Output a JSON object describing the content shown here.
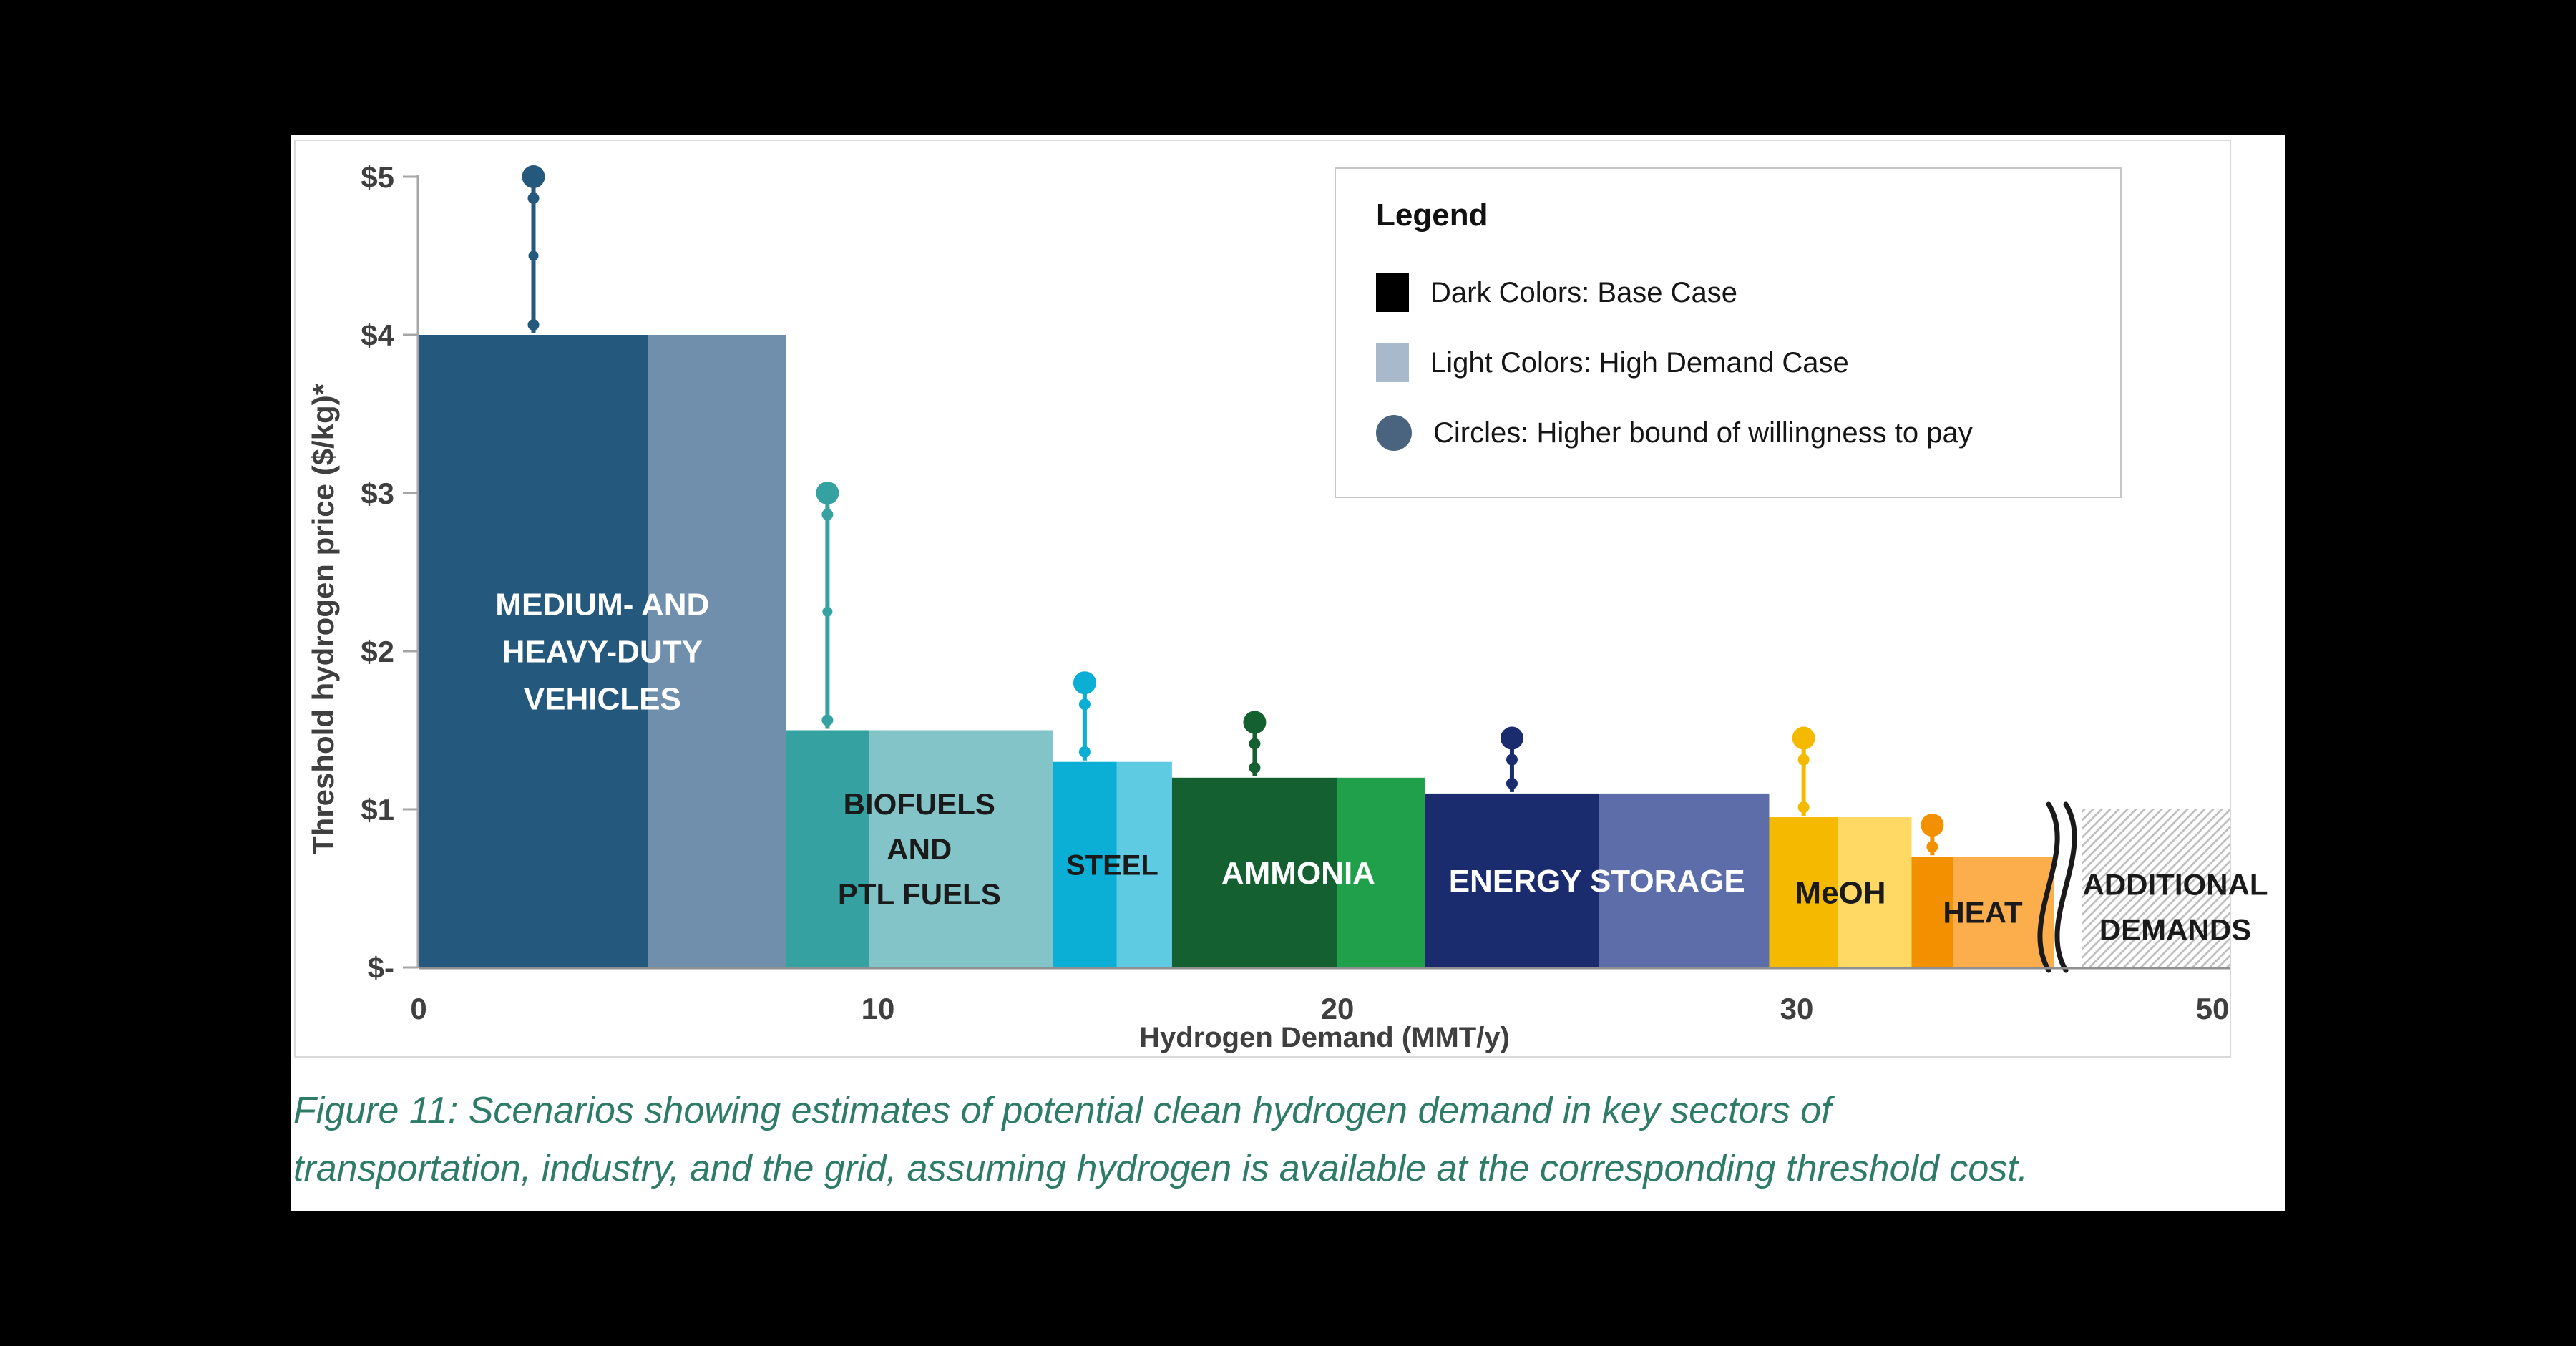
{
  "window": {
    "background": "#000000",
    "panel_background": "#FFFFFF"
  },
  "figure": {
    "caption_line1": "Figure 11: Scenarios showing estimates of potential clean hydrogen demand in key sectors of",
    "caption_line2": "transportation, industry, and the grid, assuming hydrogen is available at the corresponding threshold cost.",
    "caption_color": "#2E7C68"
  },
  "legend": {
    "title": "Legend",
    "items": [
      {
        "swatch": "square",
        "color": "#000000",
        "label": "Dark Colors: Base Case"
      },
      {
        "swatch": "square",
        "color": "#A7B9CB",
        "label": "Light Colors: High Demand Case"
      },
      {
        "swatch": "circle",
        "color": "#4A637F",
        "label": "Circles: Higher bound of willingness to pay"
      }
    ]
  },
  "axes_style": {
    "tick_color": "#3F3F3F",
    "axis_line_color": "#A6A6A6",
    "baseline_color": "#8F8F8F",
    "frame_color": "#D9D9D9"
  },
  "chart_data": {
    "type": "bar",
    "title": "",
    "xlabel": "Hydrogen Demand (MMT/y)",
    "ylabel": "Threshold hydrogen price ($/kg)*",
    "ylim": [
      0,
      5
    ],
    "xlim": [
      0,
      50
    ],
    "grid": false,
    "x_axis_break": {
      "after_value": 36.2,
      "display_end": 50
    },
    "y_ticks": [
      {
        "value": 5,
        "label": "$5"
      },
      {
        "value": 4,
        "label": "$4"
      },
      {
        "value": 3,
        "label": "$3"
      },
      {
        "value": 2,
        "label": "$2"
      },
      {
        "value": 1,
        "label": "$1"
      },
      {
        "value": 0,
        "label": "$-"
      }
    ],
    "x_ticks": [
      {
        "value": 0,
        "label": "0"
      },
      {
        "value": 10,
        "label": "10"
      },
      {
        "value": 20,
        "label": "20"
      },
      {
        "value": 30,
        "label": "30"
      },
      {
        "value": 50,
        "label": "50"
      }
    ],
    "bars": [
      {
        "sector": "Medium- and heavy-duty vehicles",
        "label_lines": [
          "MEDIUM- AND",
          "HEAVY-DUTY",
          "VEHICLES"
        ],
        "label_color": "#FFFFFF",
        "font_size": 44,
        "demand_start_mmt": 0,
        "demand_base_mmt": 5,
        "demand_high_mmt": 8,
        "threshold_price_usd_per_kg": 4.0,
        "willingness_to_pay_upper_usd_per_kg": 5.0,
        "dark_color": "#24587C",
        "light_color": "#6F8FAD"
      },
      {
        "sector": "Biofuels and PtL fuels",
        "label_lines": [
          "BIOFUELS",
          "AND",
          "PTL FUELS"
        ],
        "label_color": "#1A1A1A",
        "font_size": 42,
        "demand_start_mmt": 8,
        "demand_base_mmt": 9.8,
        "demand_high_mmt": 13.8,
        "threshold_price_usd_per_kg": 1.5,
        "willingness_to_pay_upper_usd_per_kg": 3.0,
        "dark_color": "#35A1A1",
        "light_color": "#82C4C7"
      },
      {
        "sector": "Steel",
        "label_lines": [
          "STEEL"
        ],
        "label_color": "#1A1A1A",
        "font_size": 40,
        "demand_start_mmt": 13.8,
        "demand_base_mmt": 15.2,
        "demand_high_mmt": 16.4,
        "threshold_price_usd_per_kg": 1.3,
        "willingness_to_pay_upper_usd_per_kg": 1.8,
        "dark_color": "#0BAED5",
        "light_color": "#5FCBE3"
      },
      {
        "sector": "Ammonia",
        "label_lines": [
          "AMMONIA"
        ],
        "label_color": "#FFFFFF",
        "font_size": 44,
        "demand_start_mmt": 16.4,
        "demand_base_mmt": 20,
        "demand_high_mmt": 21.9,
        "threshold_price_usd_per_kg": 1.2,
        "willingness_to_pay_upper_usd_per_kg": 1.55,
        "dark_color": "#156030",
        "light_color": "#21A04C"
      },
      {
        "sector": "Energy storage",
        "label_lines": [
          "ENERGY STORAGE"
        ],
        "label_color": "#FFFFFF",
        "font_size": 44,
        "demand_start_mmt": 21.9,
        "demand_base_mmt": 25.7,
        "demand_high_mmt": 29.4,
        "threshold_price_usd_per_kg": 1.1,
        "willingness_to_pay_upper_usd_per_kg": 1.45,
        "dark_color": "#1B2C6E",
        "light_color": "#5C6DA9"
      },
      {
        "sector": "MeOH",
        "label_lines": [
          "MeOH"
        ],
        "label_color": "#1A1A1A",
        "font_size": 44,
        "demand_start_mmt": 29.4,
        "demand_base_mmt": 30.9,
        "demand_high_mmt": 32.5,
        "threshold_price_usd_per_kg": 0.95,
        "willingness_to_pay_upper_usd_per_kg": 1.45,
        "dark_color": "#F5BA00",
        "light_color": "#FFD964"
      },
      {
        "sector": "Heat",
        "label_lines": [
          "HEAT"
        ],
        "label_color": "#1A1A1A",
        "font_size": 42,
        "demand_start_mmt": 32.5,
        "demand_base_mmt": 33.4,
        "demand_high_mmt": 35.6,
        "threshold_price_usd_per_kg": 0.7,
        "willingness_to_pay_upper_usd_per_kg": 0.9,
        "dark_color": "#F39000",
        "light_color": "#FBAE4B"
      }
    ],
    "additional_demands": {
      "label_lines": [
        "ADDITIONAL",
        "DEMANDS"
      ],
      "label_color": "#1A1A1A",
      "font_size": 42,
      "demand_start_mmt": 36.2,
      "demand_end_mmt": 50,
      "threshold_price_usd_per_kg": 1.0,
      "fill": "hatched",
      "hatch_color": "#BDBDBD"
    },
    "legend_position": "upper right"
  }
}
